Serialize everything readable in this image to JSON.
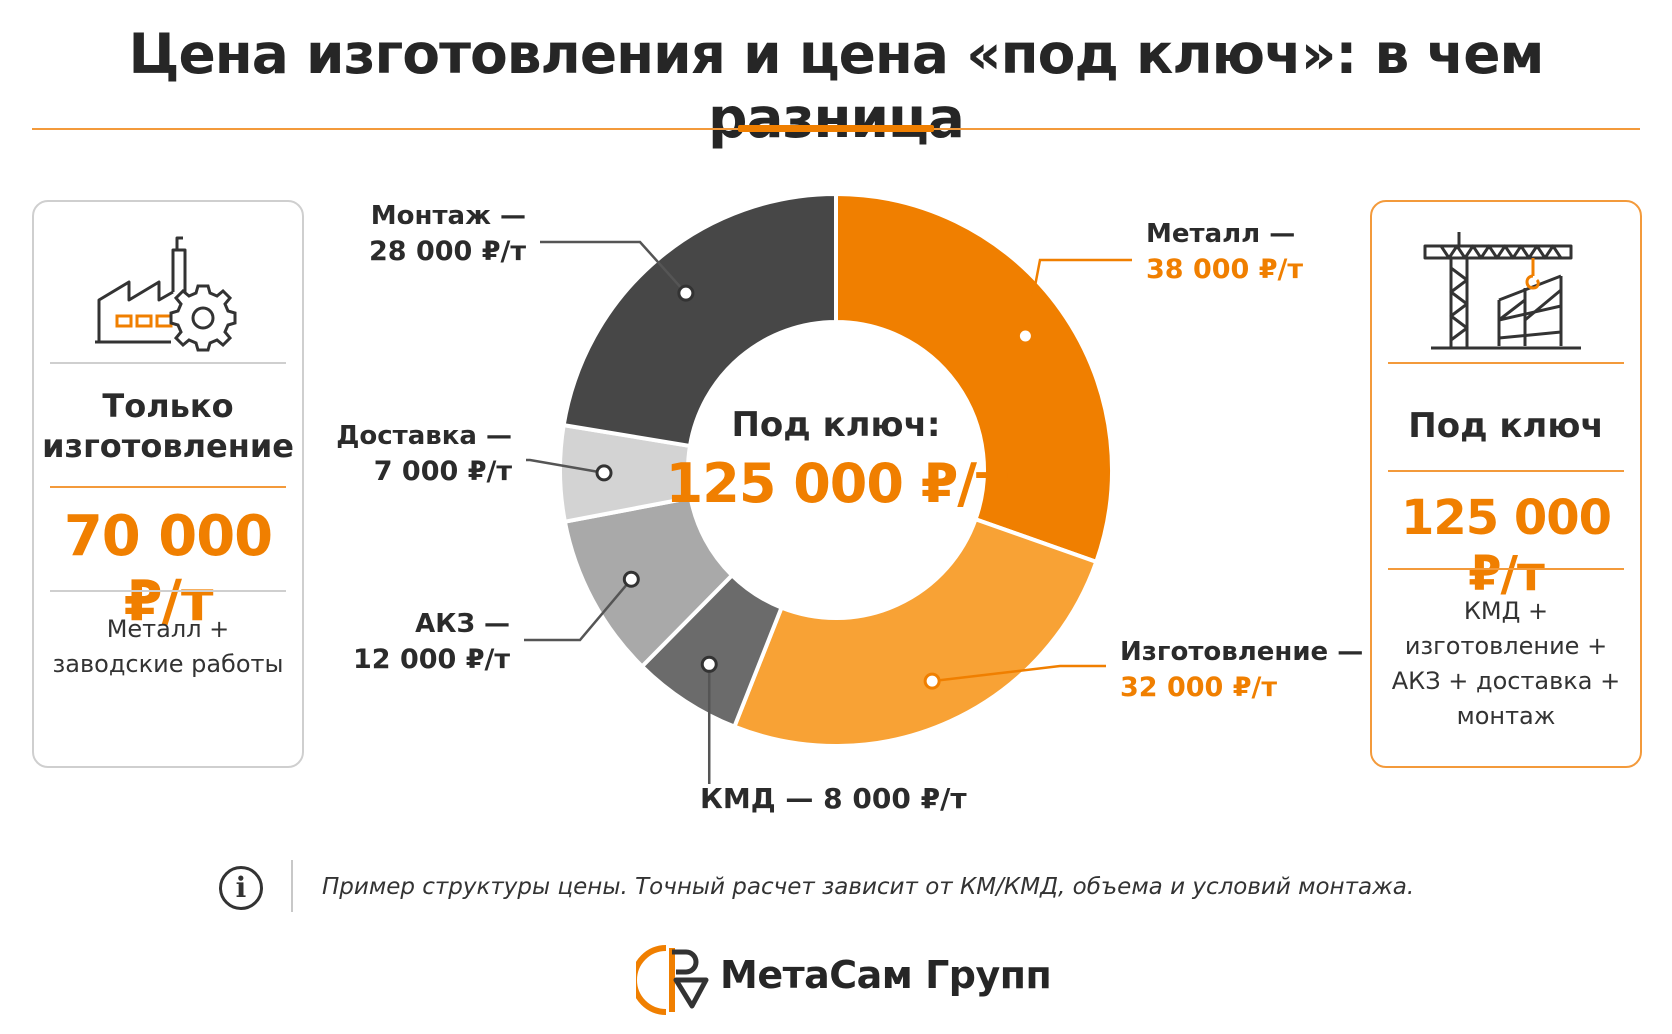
{
  "title": "Цена изготовления и цена «под ключ»: в чем разница",
  "colors": {
    "accent": "#f07f00",
    "accent_light": "#f8a235",
    "dark": "#474747",
    "mid_dark": "#6b6b6b",
    "mid": "#a9a9a9",
    "light": "#d3d3d3"
  },
  "left_card": {
    "icon": "factory-gear-icon",
    "heading_line1": "Только",
    "heading_line2": "изготовление",
    "price": "70 000 ₽/т",
    "note_line1": "Металл +",
    "note_line2": "заводские работы"
  },
  "right_card": {
    "icon": "tower-crane-icon",
    "heading": "Под ключ",
    "price": "125 000 ₽/т",
    "note_line1": "КМД +",
    "note_line2": "изготовление +",
    "note_line3": "АКЗ + доставка +",
    "note_line4": "монтаж"
  },
  "chart_data": {
    "type": "pie",
    "variant": "donut",
    "unit": "₽/т",
    "center_label": "Под ключ:",
    "center_value": "125 000 ₽/т",
    "slices": [
      {
        "name": "Металл",
        "value": 38000,
        "value_label": "38 000 ₽/т",
        "color": "#f07f00"
      },
      {
        "name": "Изготовление",
        "value": 32000,
        "value_label": "32 000 ₽/т",
        "color": "#f8a235"
      },
      {
        "name": "КМД",
        "value": 8000,
        "value_label": "8 000 ₽/т",
        "color": "#6b6b6b"
      },
      {
        "name": "АКЗ",
        "value": 12000,
        "value_label": "12 000 ₽/т",
        "color": "#a9a9a9"
      },
      {
        "name": "Доставка",
        "value": 7000,
        "value_label": "7 000 ₽/т",
        "color": "#d3d3d3"
      },
      {
        "name": "Монтаж",
        "value": 28000,
        "value_label": "28 000 ₽/т",
        "color": "#474747"
      }
    ]
  },
  "footnote": "Пример структуры цены. Точный расчет зависит от КМ/КМД, объема и условий монтажа.",
  "info_icon": "info-icon",
  "brand": {
    "name": "МетаСам Групп",
    "logo_icon": "metasam-logo-icon"
  }
}
